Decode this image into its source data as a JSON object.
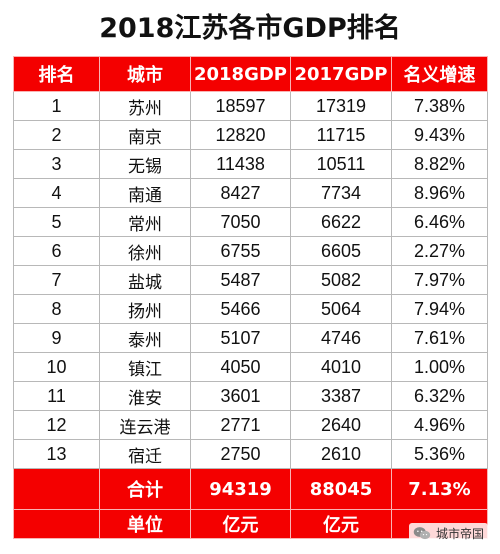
{
  "title": "2018江苏各市GDP排名",
  "headers": [
    "排名",
    "城市",
    "2018GDP",
    "2017GDP",
    "名义增速"
  ],
  "rows": [
    [
      "1",
      "苏州",
      "18597",
      "17319",
      "7.38%"
    ],
    [
      "2",
      "南京",
      "12820",
      "11715",
      "9.43%"
    ],
    [
      "3",
      "无锡",
      "11438",
      "10511",
      "8.82%"
    ],
    [
      "4",
      "南通",
      "8427",
      "7734",
      "8.96%"
    ],
    [
      "5",
      "常州",
      "7050",
      "6622",
      "6.46%"
    ],
    [
      "6",
      "徐州",
      "6755",
      "6605",
      "2.27%"
    ],
    [
      "7",
      "盐城",
      "5487",
      "5082",
      "7.97%"
    ],
    [
      "8",
      "扬州",
      "5466",
      "5064",
      "7.94%"
    ],
    [
      "9",
      "泰州",
      "5107",
      "4746",
      "7.61%"
    ],
    [
      "10",
      "镇江",
      "4050",
      "4010",
      "1.00%"
    ],
    [
      "11",
      "淮安",
      "3601",
      "3387",
      "6.32%"
    ],
    [
      "12",
      "连云港",
      "2771",
      "2640",
      "4.96%"
    ],
    [
      "13",
      "宿迁",
      "2750",
      "2610",
      "5.36%"
    ]
  ],
  "total": {
    "label": "合计",
    "gdp2018": "94319",
    "gdp2017": "88045",
    "growth": "7.13%"
  },
  "unit": {
    "label": "单位",
    "gdp2018": "亿元",
    "gdp2017": "亿元"
  },
  "watermark": {
    "text": "城市帝国",
    "icon": "wechat-icon"
  },
  "colors": {
    "header": "#f40000",
    "header_text": "#ffffff"
  }
}
